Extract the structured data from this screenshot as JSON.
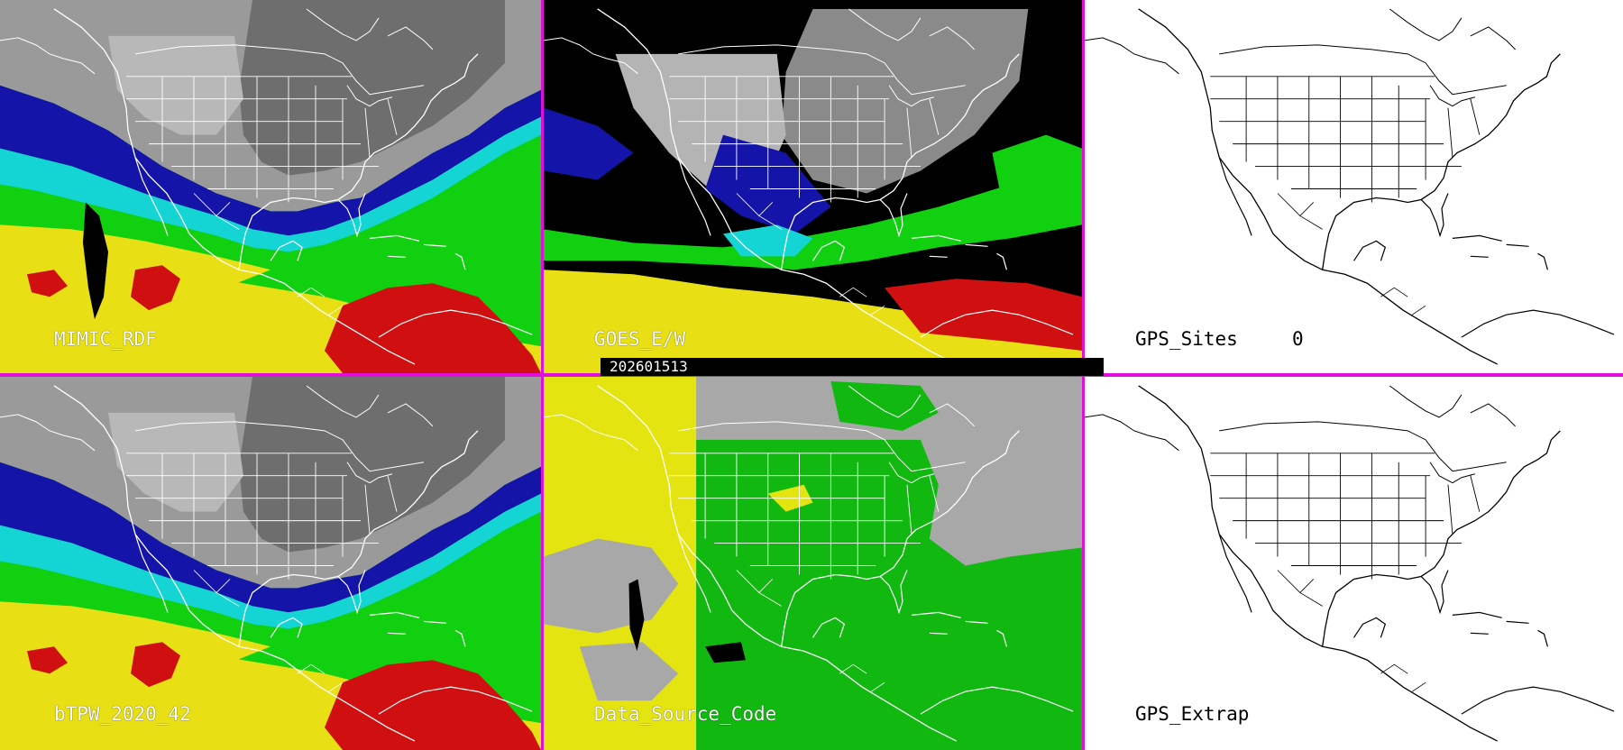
{
  "panels": [
    {
      "id": "mimic",
      "label": "MIMIC_RDF"
    },
    {
      "id": "goes",
      "label": "GOES_E/W"
    },
    {
      "id": "gps-sites",
      "label": "GPS_Sites",
      "count": "0"
    },
    {
      "id": "btpw",
      "label": "bTPW_2020_42"
    },
    {
      "id": "data-source",
      "label": "Data_Source_Code"
    },
    {
      "id": "gps-extrap",
      "label": "GPS_Extrap"
    }
  ],
  "timestamp": "202601513",
  "colors": {
    "divider": "#e010d8",
    "pw_red": "#d01010",
    "pw_yellow": "#e8e010",
    "pw_green": "#10d010",
    "pw_cyan": "#10d8d8",
    "pw_blue": "#1010a0",
    "pw_gray": "#909090",
    "source_yellow": "#e4e410",
    "source_green": "#10b810",
    "source_gray": "#a8a8a8"
  }
}
